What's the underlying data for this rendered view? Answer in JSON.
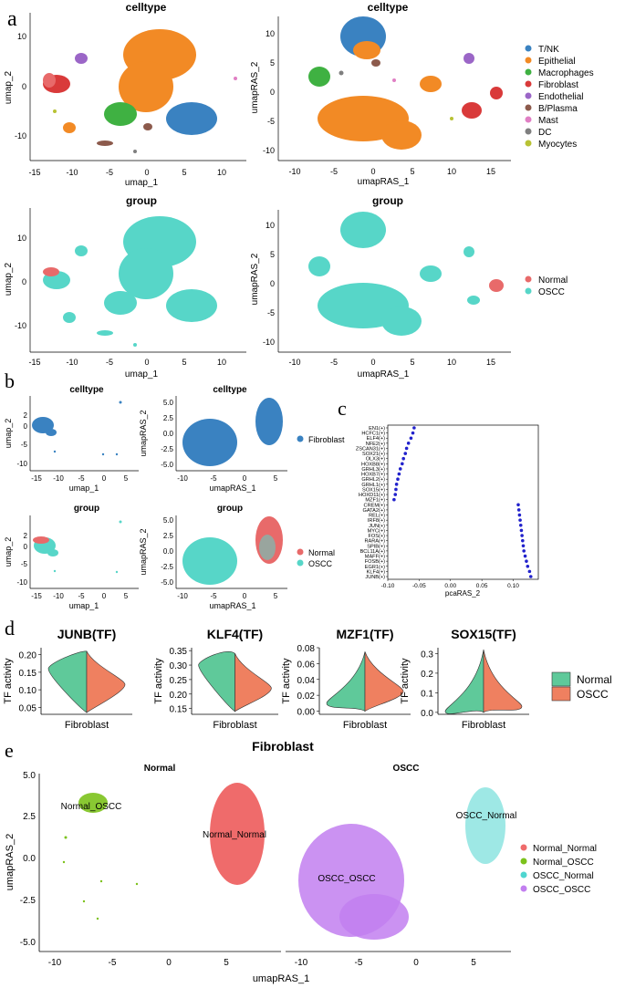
{
  "panel_letters": [
    "a",
    "b",
    "c",
    "d",
    "e"
  ],
  "colors": {
    "celltype": [
      "#3a82c1",
      "#f28a25",
      "#3fb142",
      "#d93a3a",
      "#9b66c7",
      "#8c5a4c",
      "#e07fc4",
      "#7f7f7f",
      "#b8c234"
    ],
    "group": [
      "#e86a6a",
      "#57d6c8"
    ],
    "fibroblast": "#3a82c1",
    "dot": "#2222cc",
    "violin_normal": "#5fc99a",
    "violin_oscc": "#ef8060",
    "e_groups": [
      "#ef6b6b",
      "#7cc21c",
      "#4fd6d0",
      "#c27ff0"
    ]
  },
  "panel_a": {
    "title_celltype": "celltype",
    "title_group": "group",
    "xlab_umap": "umap_1",
    "ylab_umap": "umap_2",
    "xlab_ras": "umapRAS_1",
    "ylab_ras": "umapRAS_2",
    "xticks_umap": [
      "-15",
      "-10",
      "-5",
      "0",
      "5",
      "10"
    ],
    "yticks_umap": [
      "0",
      "-10"
    ],
    "yticks_umap_top": "10",
    "xticks_ras": [
      "-10",
      "-5",
      "0",
      "5",
      "10",
      "15"
    ],
    "yticks_ras": [
      "10",
      "5",
      "0",
      "-5",
      "-10"
    ],
    "legend_celltype": [
      "T/NK",
      "Epithelial",
      "Macrophages",
      "Fibroblast",
      "Endothelial",
      "B/Plasma",
      "Mast",
      "DC",
      "Myocytes"
    ],
    "legend_group": [
      "Normal",
      "OSCC"
    ]
  },
  "panel_b": {
    "title_celltype": "celltype",
    "title_group": "group",
    "xlab_umap": "umap_1",
    "ylab_umap": "umap_2",
    "xlab_ras": "umapRAS_1",
    "ylab_ras": "umapRAS_2",
    "xticks_umap": [
      "-15",
      "-10",
      "-5",
      "0",
      "5"
    ],
    "yticks_umap": [
      "2",
      "0",
      "-5",
      "-10"
    ],
    "xticks_ras": [
      "-10",
      "-5",
      "0",
      "5"
    ],
    "yticks_ras": [
      "5.0",
      "2.5",
      "0.0",
      "-2.5",
      "-5.0"
    ],
    "legend_celltype": [
      "Fibroblast"
    ],
    "legend_group": [
      "Normal",
      "OSCC"
    ]
  },
  "chart_data": [
    {
      "panel": "c",
      "type": "scatter",
      "title": "",
      "xlabel": "pcaRAS_2",
      "ylabel": "",
      "xlim": [
        -0.1,
        0.14
      ],
      "xticks": [
        "-0.10",
        "-0.05",
        "0.00",
        "0.05",
        "0.10"
      ],
      "categories": [
        "EN1(+)",
        "HCFC1(+)",
        "ELF4(+)",
        "NFE2(+)",
        "ZSCAN31(+)",
        "SOX21(+)",
        "OLX3(+)",
        "HOXB8(+)",
        "GRHL3(+)",
        "HOXB7(+)",
        "GRHL2(+)",
        "GRHL1(+)",
        "SOX15(+)",
        "HOXD11(+)",
        "MZF1(+)",
        "CREM(+)",
        "GATA2(+)",
        "REL(+)",
        "IRF8(+)",
        "JUN(+)",
        "MYC(+)",
        "FOS(+)",
        "RARA(+)",
        "SPIB(+)",
        "BCL11A(+)",
        "MAFF(+)",
        "FOSB(+)",
        "EGR1(+)",
        "KLF4(+)",
        "JUNB(+)"
      ],
      "values": [
        -0.058,
        -0.06,
        -0.063,
        -0.067,
        -0.07,
        -0.072,
        -0.075,
        -0.077,
        -0.08,
        -0.082,
        -0.084,
        -0.086,
        -0.087,
        -0.088,
        -0.09,
        0.108,
        0.109,
        0.11,
        0.111,
        0.112,
        0.113,
        0.114,
        0.115,
        0.116,
        0.117,
        0.119,
        0.121,
        0.123,
        0.126,
        0.128
      ]
    },
    {
      "panel": "d",
      "type": "violin",
      "ylabel": "TF activity",
      "xlabel": "Fibroblast",
      "legend": [
        "Normal",
        "OSCC"
      ],
      "plots": [
        {
          "title": "JUNB(TF)",
          "ylim": [
            0.03,
            0.22
          ],
          "yticks": [
            0.05,
            0.1,
            0.15,
            0.2
          ],
          "ticklabels": [
            "0.05",
            "0.10",
            "0.15",
            "0.20"
          ],
          "normal_median": 0.16,
          "oscc_median": 0.115,
          "range": [
            0.035,
            0.21
          ]
        },
        {
          "title": "KLF4(TF)",
          "ylim": [
            0.13,
            0.36
          ],
          "yticks": [
            0.15,
            0.2,
            0.25,
            0.3,
            0.35
          ],
          "ticklabels": [
            "0.15",
            "0.20",
            "0.25",
            "0.30",
            "0.35"
          ],
          "normal_median": 0.3,
          "oscc_median": 0.22,
          "range": [
            0.14,
            0.34
          ]
        },
        {
          "title": "MZF1(TF)",
          "ylim": [
            -0.004,
            0.08
          ],
          "yticks": [
            0.0,
            0.02,
            0.04,
            0.06,
            0.08
          ],
          "ticklabels": [
            "0.00",
            "0.02",
            "0.04",
            "0.06",
            "0.08"
          ],
          "normal_median": 0.01,
          "oscc_median": 0.025,
          "range": [
            0.0,
            0.075
          ]
        },
        {
          "title": "SOX15(TF)",
          "ylim": [
            -0.01,
            0.33
          ],
          "yticks": [
            0.0,
            0.1,
            0.2,
            0.3
          ],
          "ticklabels": [
            "0.0",
            "0.1",
            "0.2",
            "0.3"
          ],
          "normal_median": 0.005,
          "oscc_median": 0.03,
          "range": [
            0.0,
            0.32
          ]
        }
      ]
    }
  ],
  "panel_e": {
    "title": "Fibroblast",
    "facet_normal": "Normal",
    "facet_oscc": "OSCC",
    "xlabel": "umapRAS_1",
    "ylabel": "umapRAS_2",
    "xticks": [
      "-10",
      "-5",
      "0",
      "5"
    ],
    "yticks": [
      "5.0",
      "2.5",
      "0.0",
      "-2.5",
      "-5.0"
    ],
    "cluster_labels": [
      "Normal_OSCC",
      "Normal_Normal",
      "OSCC_Normal",
      "OSCC_OSCC"
    ],
    "legend": [
      "Normal_Normal",
      "Normal_OSCC",
      "OSCC_Normal",
      "OSCC_OSCC"
    ]
  }
}
